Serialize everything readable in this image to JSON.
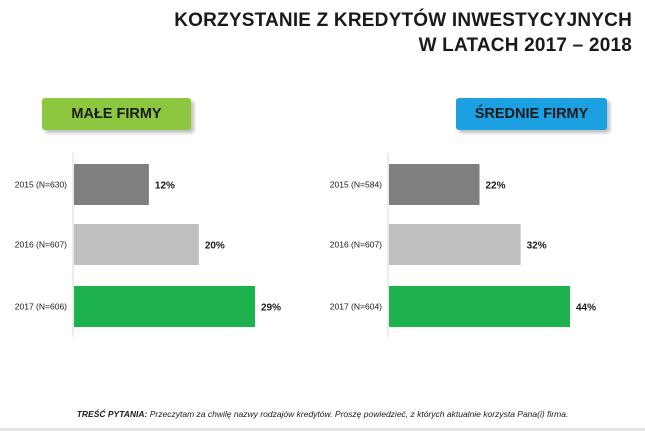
{
  "title": {
    "line1": "KORZYSTANIE Z KREDYTÓW INWESTYCYJNYCH",
    "line2": "W LATACH 2017 – 2018"
  },
  "colors": {
    "badge_small": "#8dc63f",
    "badge_medium": "#1ba1e2",
    "bar_2015": "#7f7f7f",
    "bar_2016": "#bfbfbf",
    "bar_2017": "#1db24d",
    "axis": "#d9d9d9",
    "footer_rule": "#e6e6e6"
  },
  "chart_data": [
    {
      "type": "bar",
      "orientation": "horizontal",
      "badge": "MAŁE FIRMY",
      "categories": [
        "2015 (N=630)",
        "2016 (N=607)",
        "2017 (N=606)"
      ],
      "values": [
        12,
        20,
        29
      ],
      "value_labels": [
        "12%",
        "20%",
        "29%"
      ],
      "unit": "%",
      "xlim": [
        0,
        44
      ]
    },
    {
      "type": "bar",
      "orientation": "horizontal",
      "badge": "ŚREDNIE FIRMY",
      "categories": [
        "2015 (N=584)",
        "2016 (N=607)",
        "2017 (N=604)"
      ],
      "values": [
        22,
        32,
        44
      ],
      "value_labels": [
        "22%",
        "32%",
        "44%"
      ],
      "unit": "%",
      "xlim": [
        0,
        44
      ]
    }
  ],
  "footer": {
    "label": "TREŚĆ PYTANIA:",
    "text": "Przeczytam za chwilę nazwy rodzajów kredytów. Proszę powiedzieć, z których aktualnie korzysta Pana(i) firma."
  }
}
